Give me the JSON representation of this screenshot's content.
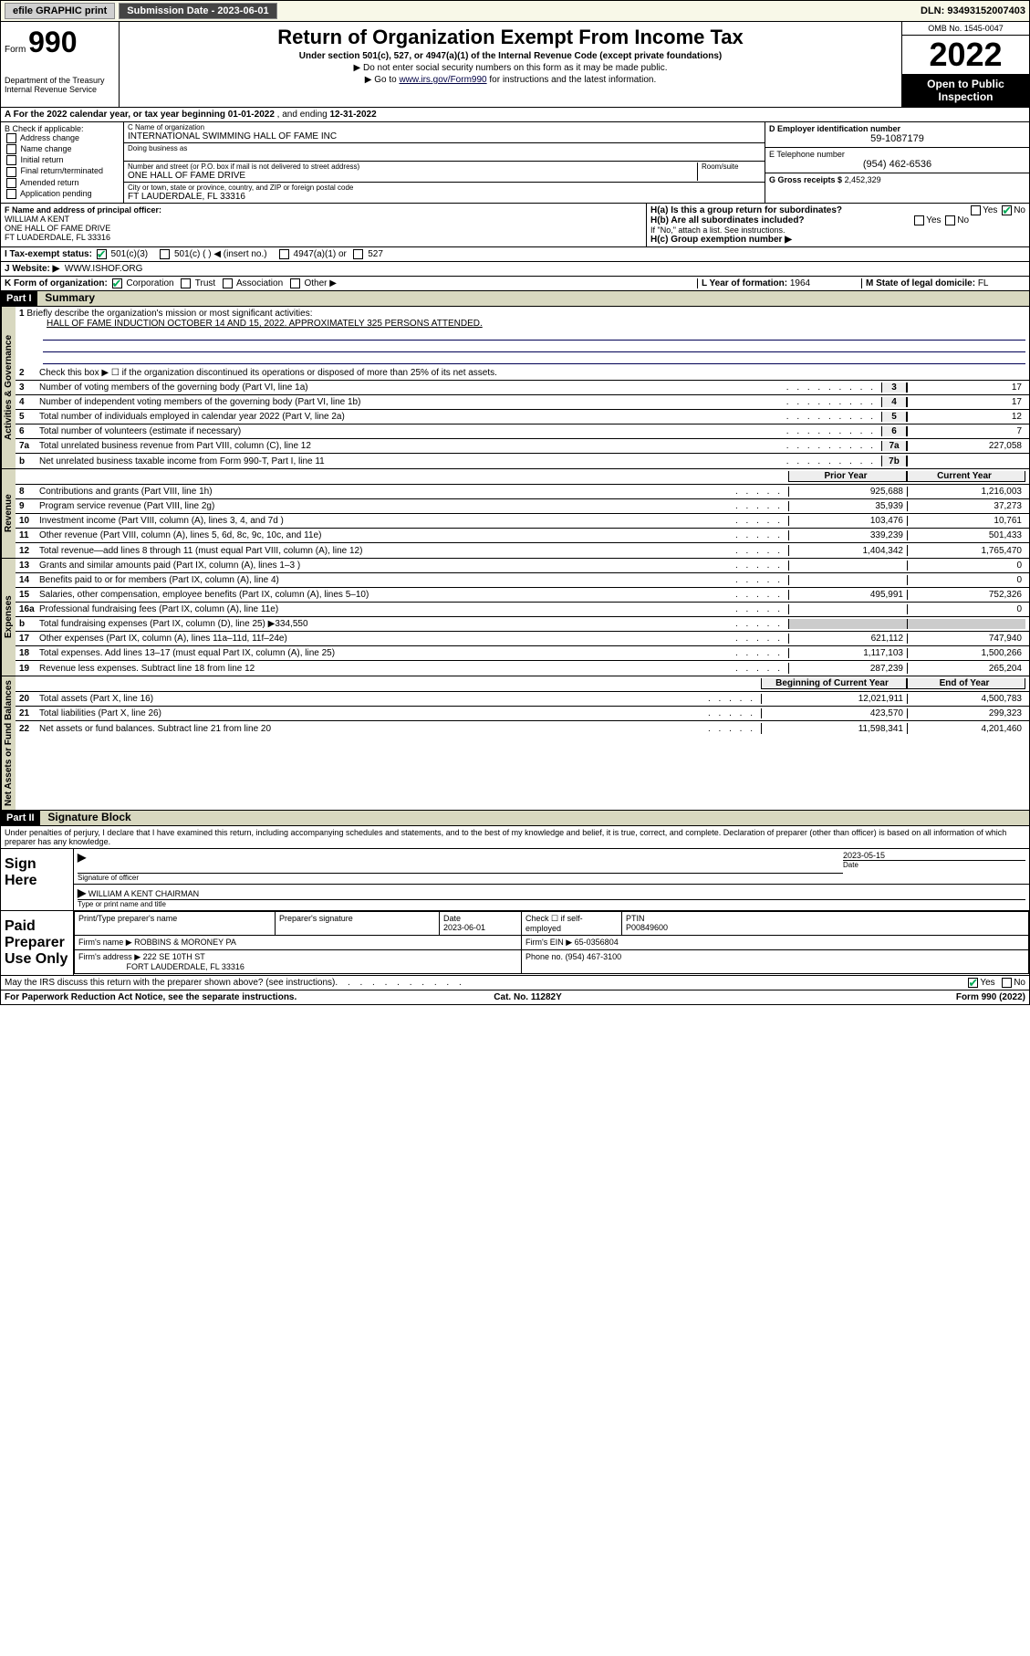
{
  "topbar": {
    "efile": "efile GRAPHIC print",
    "sub_lbl": "Submission Date - 2023-06-01",
    "dln": "DLN: 93493152007403"
  },
  "header": {
    "form_word": "Form",
    "form_num": "990",
    "dept": "Department of the Treasury\nInternal Revenue Service",
    "title": "Return of Organization Exempt From Income Tax",
    "sub1": "Under section 501(c), 527, or 4947(a)(1) of the Internal Revenue Code (except private foundations)",
    "sub2": "▶ Do not enter social security numbers on this form as it may be made public.",
    "sub3_pre": "▶ Go to ",
    "sub3_link": "www.irs.gov/Form990",
    "sub3_post": " for instructions and the latest information.",
    "omb": "OMB No. 1545-0047",
    "year": "2022",
    "open": "Open to Public Inspection"
  },
  "line_a": {
    "text_pre": "A For the 2022 calendar year, or tax year beginning ",
    "begin": "01-01-2022",
    "mid": " , and ending ",
    "end": "12-31-2022"
  },
  "box_b": {
    "title": "B Check if applicable:",
    "items": [
      "Address change",
      "Name change",
      "Initial return",
      "Final return/terminated",
      "Amended return",
      "Application pending"
    ]
  },
  "box_c": {
    "name_lbl": "C Name of organization",
    "name": "INTERNATIONAL SWIMMING HALL OF FAME INC",
    "dba_lbl": "Doing business as",
    "dba": "",
    "street_lbl": "Number and street (or P.O. box if mail is not delivered to street address)",
    "room_lbl": "Room/suite",
    "street": "ONE HALL OF FAME DRIVE",
    "city_lbl": "City or town, state or province, country, and ZIP or foreign postal code",
    "city": "FT LAUDERDALE, FL  33316"
  },
  "box_d": {
    "lbl": "D Employer identification number",
    "val": "59-1087179"
  },
  "box_e": {
    "lbl": "E Telephone number",
    "val": "(954) 462-6536"
  },
  "box_g": {
    "lbl": "G Gross receipts $",
    "val": "2,452,329"
  },
  "box_f": {
    "lbl": "F Name and address of principal officer:",
    "name": "WILLIAM A KENT",
    "addr1": "ONE HALL OF FAME DRIVE",
    "addr2": "FT LUADERDALE, FL  33316"
  },
  "box_h": {
    "ha_lbl": "H(a)  Is this a group return for subordinates?",
    "hb_lbl": "H(b)  Are all subordinates included?",
    "hb_note": "If \"No,\" attach a list. See instructions.",
    "hc_lbl": "H(c)  Group exemption number ▶",
    "yes": "Yes",
    "no": "No"
  },
  "line_i": {
    "lbl": "I    Tax-exempt status:",
    "o1": "501(c)(3)",
    "o2": "501(c) (   ) ◀ (insert no.)",
    "o3": "4947(a)(1) or",
    "o4": "527"
  },
  "line_j": {
    "lbl": "J    Website: ▶",
    "val": "WWW.ISHOF.ORG"
  },
  "line_k": {
    "lbl": "K Form of organization:",
    "o1": "Corporation",
    "o2": "Trust",
    "o3": "Association",
    "o4": "Other ▶"
  },
  "line_l": {
    "lbl": "L Year of formation:",
    "val": "1964"
  },
  "line_m": {
    "lbl": "M State of legal domicile:",
    "val": "FL"
  },
  "part1": {
    "hdr": "Part I",
    "title": "Summary",
    "l1_lbl": "Briefly describe the organization's mission or most significant activities:",
    "l1_val": "HALL OF FAME INDUCTION OCTOBER 14 AND 15, 2022. APPROXIMATELY 325 PERSONS ATTENDED.",
    "l2": "Check this box ▶ ☐  if the organization discontinued its operations or disposed of more than 25% of its net assets.",
    "rows_top": [
      {
        "n": "3",
        "t": "Number of voting members of the governing body (Part VI, line 1a)",
        "box": "3",
        "v": "17"
      },
      {
        "n": "4",
        "t": "Number of independent voting members of the governing body (Part VI, line 1b)",
        "box": "4",
        "v": "17"
      },
      {
        "n": "5",
        "t": "Total number of individuals employed in calendar year 2022 (Part V, line 2a)",
        "box": "5",
        "v": "12"
      },
      {
        "n": "6",
        "t": "Total number of volunteers (estimate if necessary)",
        "box": "6",
        "v": "7"
      },
      {
        "n": "7a",
        "t": "Total unrelated business revenue from Part VIII, column (C), line 12",
        "box": "7a",
        "v": "227,058"
      },
      {
        "n": "b",
        "t": "Net unrelated business taxable income from Form 990-T, Part I, line 11",
        "box": "7b",
        "v": ""
      }
    ],
    "col_hdr_prior": "Prior Year",
    "col_hdr_curr": "Current Year",
    "rows_rev": [
      {
        "n": "8",
        "t": "Contributions and grants (Part VIII, line 1h)",
        "p": "925,688",
        "c": "1,216,003"
      },
      {
        "n": "9",
        "t": "Program service revenue (Part VIII, line 2g)",
        "p": "35,939",
        "c": "37,273"
      },
      {
        "n": "10",
        "t": "Investment income (Part VIII, column (A), lines 3, 4, and 7d )",
        "p": "103,476",
        "c": "10,761"
      },
      {
        "n": "11",
        "t": "Other revenue (Part VIII, column (A), lines 5, 6d, 8c, 9c, 10c, and 11e)",
        "p": "339,239",
        "c": "501,433"
      },
      {
        "n": "12",
        "t": "Total revenue—add lines 8 through 11 (must equal Part VIII, column (A), line 12)",
        "p": "1,404,342",
        "c": "1,765,470"
      }
    ],
    "rows_exp": [
      {
        "n": "13",
        "t": "Grants and similar amounts paid (Part IX, column (A), lines 1–3 )",
        "p": "",
        "c": "0"
      },
      {
        "n": "14",
        "t": "Benefits paid to or for members (Part IX, column (A), line 4)",
        "p": "",
        "c": "0"
      },
      {
        "n": "15",
        "t": "Salaries, other compensation, employee benefits (Part IX, column (A), lines 5–10)",
        "p": "495,991",
        "c": "752,326"
      },
      {
        "n": "16a",
        "t": "Professional fundraising fees (Part IX, column (A), line 11e)",
        "p": "",
        "c": "0"
      },
      {
        "n": "b",
        "t": "Total fundraising expenses (Part IX, column (D), line 25) ▶334,550",
        "p": "—",
        "c": "—"
      },
      {
        "n": "17",
        "t": "Other expenses (Part IX, column (A), lines 11a–11d, 11f–24e)",
        "p": "621,112",
        "c": "747,940"
      },
      {
        "n": "18",
        "t": "Total expenses. Add lines 13–17 (must equal Part IX, column (A), line 25)",
        "p": "1,117,103",
        "c": "1,500,266"
      },
      {
        "n": "19",
        "t": "Revenue less expenses. Subtract line 18 from line 12",
        "p": "287,239",
        "c": "265,204"
      }
    ],
    "col_hdr_beg": "Beginning of Current Year",
    "col_hdr_end": "End of Year",
    "rows_net": [
      {
        "n": "20",
        "t": "Total assets (Part X, line 16)",
        "p": "12,021,911",
        "c": "4,500,783"
      },
      {
        "n": "21",
        "t": "Total liabilities (Part X, line 26)",
        "p": "423,570",
        "c": "299,323"
      },
      {
        "n": "22",
        "t": "Net assets or fund balances. Subtract line 21 from line 20",
        "p": "11,598,341",
        "c": "4,201,460"
      }
    ],
    "tabs": {
      "gov": "Activities & Governance",
      "rev": "Revenue",
      "exp": "Expenses",
      "net": "Net Assets or Fund Balances"
    }
  },
  "part2": {
    "hdr": "Part II",
    "title": "Signature Block",
    "decl": "Under penalties of perjury, I declare that I have examined this return, including accompanying schedules and statements, and to the best of my knowledge and belief, it is true, correct, and complete. Declaration of preparer (other than officer) is based on all information of which preparer has any knowledge."
  },
  "sign": {
    "lbl": "Sign Here",
    "sig_of_officer": "Signature of officer",
    "date_lbl": "Date",
    "date": "2023-05-15",
    "name": "WILLIAM A KENT CHAIRMAN",
    "name_lbl": "Type or print name and title"
  },
  "paid": {
    "lbl": "Paid Preparer Use Only",
    "h1": "Print/Type preparer's name",
    "h2": "Preparer's signature",
    "h3": "Date",
    "h3v": "2023-06-01",
    "h4": "Check ☐ if self-employed",
    "h5": "PTIN",
    "h5v": "P00849600",
    "firm_lbl": "Firm's name    ▶",
    "firm": "ROBBINS & MORONEY PA",
    "ein_lbl": "Firm's EIN ▶",
    "ein": "65-0356804",
    "addr_lbl": "Firm's address ▶",
    "addr1": "222 SE 10TH ST",
    "addr2": "FORT LAUDERDALE, FL  33316",
    "phone_lbl": "Phone no.",
    "phone": "(954) 467-3100"
  },
  "discuss": {
    "txt": "May the IRS discuss this return with the preparer shown above? (see instructions)",
    "yes": "Yes",
    "no": "No"
  },
  "footer": {
    "left": "For Paperwork Reduction Act Notice, see the separate instructions.",
    "mid": "Cat. No. 11282Y",
    "right": "Form 990 (2022)"
  }
}
